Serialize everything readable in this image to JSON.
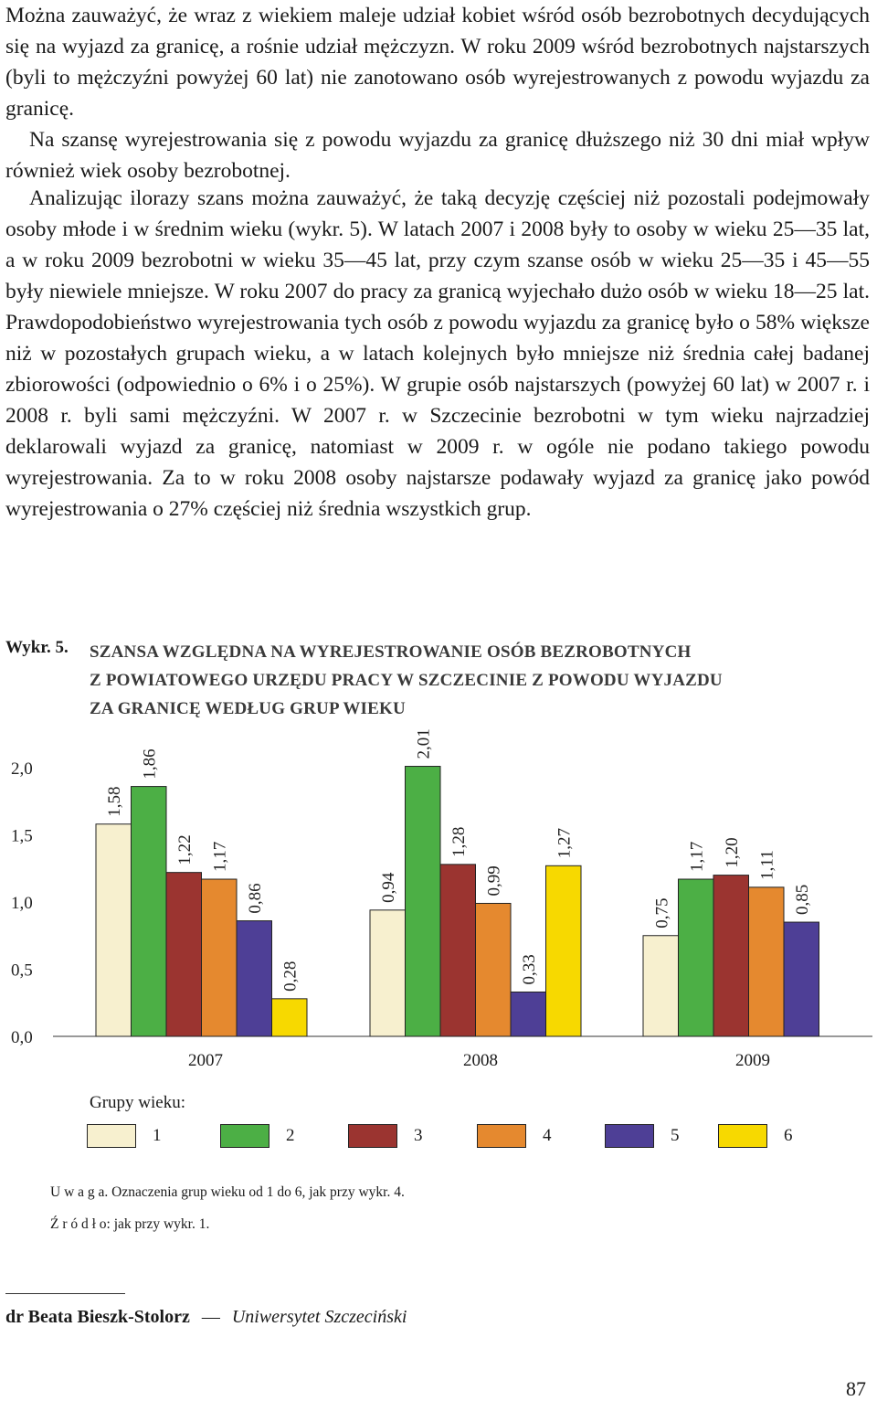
{
  "paragraphs": [
    "Można zauważyć, że wraz z wiekiem maleje udział kobiet wśród osób bezrobotnych decydujących się na wyjazd za granicę, a rośnie udział mężczyzn. W roku 2009 wśród bezrobotnych najstarszych (byli to mężczyźni powyżej 60 lat) nie zanotowano osób wyrejestrowanych z powodu wyjazdu za granicę.",
    "Na szansę wyrejestrowania się z powodu wyjazdu za granicę dłuższego niż 30 dni miał wpływ również wiek osoby bezrobotnej.",
    "Analizując ilorazy szans można zauważyć, że taką decyzję częściej niż pozostali podejmowały osoby młode i w średnim wieku (wykr. 5). W latach 2007 i 2008 były to osoby w wieku 25—35 lat, a w roku 2009 bezrobotni w wieku 35—45 lat, przy czym szanse osób w wieku 25—35 i 45—55 były niewiele mniejsze. W roku 2007 do pracy za granicą wyjechało dużo osób w wieku 18—25 lat. Prawdopodobieństwo wyrejestrowania tych osób z powodu wyjazdu za granicę było o 58% większe niż w pozostałych grupach wieku, a w latach kolejnych było mniejsze niż średnia całej badanej zbiorowości (odpowiednio o 6% i o 25%). W grupie osób najstarszych (powyżej 60 lat) w 2007 r. i 2008 r. byli sami mężczyźni. W 2007 r. w Szczecinie bezrobotni w tym wieku najrzadziej deklarowali wyjazd za granicę, natomiast w 2009 r. w ogóle nie podano takiego powodu wyrejestrowania. Za to w roku 2008 osoby najstarsze podawały wyjazd za granicę jako powód wyrejestrowania o 27% częściej niż średnia wszystkich grup."
  ],
  "figure": {
    "label": "Wykr. 5.",
    "title_lines": [
      "SZANSA WZGLĘDNA NA WYREJESTROWANIE OSÓB BEZROBOTNYCH",
      "Z POWIATOWEGO URZĘDU PRACY W SZCZECINIE Z POWODU WYJAZDU",
      "ZA GRANICĘ WEDŁUG GRUP WIEKU"
    ],
    "legend_title": "Grupy wieku:",
    "note": "U w a g a. Oznaczenia grup wieku od 1 do 6, jak przy wykr. 4.",
    "source": "Ź r ó d ł o: jak przy wykr. 1."
  },
  "chart_data": {
    "type": "bar",
    "title": "SZANSA WZGLĘDNA NA WYREJESTROWANIE OSÓB BEZROBOTNYCH Z POWIATOWEGO URZĘDU PRACY W SZCZECINIE Z POWODU WYJAZDU ZA GRANICĘ WEDŁUG GRUP WIEKU",
    "categories": [
      "2007",
      "2008",
      "2009"
    ],
    "series": [
      {
        "name": "1",
        "color": "#f7f0cf",
        "values": [
          1.58,
          0.94,
          0.75
        ],
        "labels": [
          "1,58",
          "0,94",
          "0,75"
        ]
      },
      {
        "name": "2",
        "color": "#4caf45",
        "values": [
          1.86,
          2.01,
          1.17
        ],
        "labels": [
          "1,86",
          "2,01",
          "1,17"
        ]
      },
      {
        "name": "3",
        "color": "#9b3430",
        "values": [
          1.22,
          1.28,
          1.2
        ],
        "labels": [
          "1,22",
          "1,28",
          "1,20"
        ]
      },
      {
        "name": "4",
        "color": "#e5892f",
        "values": [
          1.17,
          0.99,
          1.11
        ],
        "labels": [
          "1,17",
          "0,99",
          "1,11"
        ]
      },
      {
        "name": "5",
        "color": "#4e3f96",
        "values": [
          0.86,
          0.33,
          0.85
        ],
        "labels": [
          "0,86",
          "0,33",
          "0,85"
        ]
      },
      {
        "name": "6",
        "color": "#f7d900",
        "values": [
          0.28,
          1.27,
          null
        ],
        "labels": [
          "0,28",
          "1,27",
          null
        ]
      }
    ],
    "y_ticks": [
      0.0,
      0.5,
      1.0,
      1.5,
      2.0
    ],
    "y_tick_labels": [
      "0,0",
      "0,5",
      "1,0",
      "1,5",
      "2,0"
    ],
    "ylim": [
      0,
      2.0
    ],
    "grid": false,
    "legend": "bottom"
  },
  "footer": {
    "author_name": "dr Beata Bieszk-Stolorz",
    "dash": "—",
    "affiliation": "Uniwersytet Szczeciński",
    "page_number": "87"
  }
}
